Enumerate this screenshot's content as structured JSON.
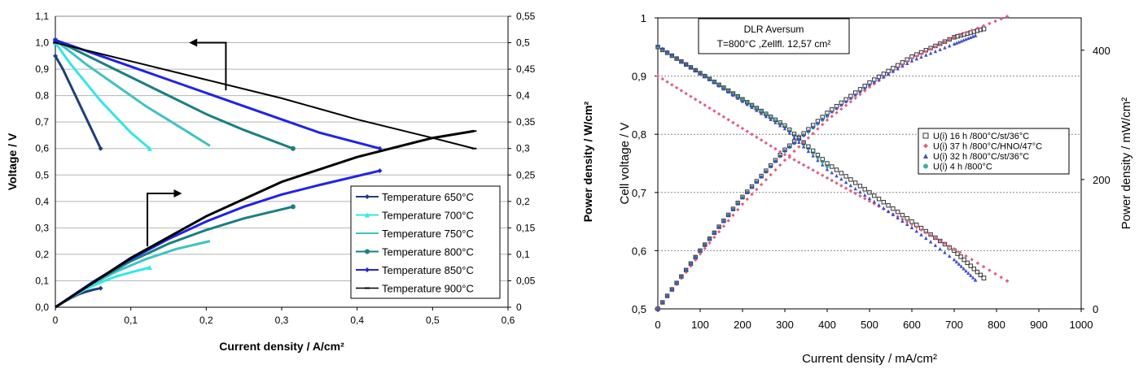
{
  "chart_data": [
    {
      "type": "line",
      "xlabel": "Current density / A/cm²",
      "ylabel": "Voltage / V",
      "y2label": "Power density / W/cm²",
      "xlim": [
        0,
        0.6
      ],
      "ylim": [
        0,
        1.1
      ],
      "y2lim": [
        0,
        0.55
      ],
      "x_ticks": [
        "0",
        "0,1",
        "0,2",
        "0,3",
        "0,4",
        "0,5",
        "0,6"
      ],
      "y_ticks": [
        "0,0",
        "0,1",
        "0,2",
        "0,3",
        "0,4",
        "0,5",
        "0,6",
        "0,7",
        "0,8",
        "0,9",
        "1,0",
        "1,1"
      ],
      "y2_ticks": [
        "0",
        "0,05",
        "0,1",
        "0,15",
        "0,2",
        "0,25",
        "0,3",
        "0,35",
        "0,4",
        "0,45",
        "0,5",
        "0,55"
      ],
      "grid": "horizontal",
      "legend_position": "center-right",
      "series": [
        {
          "name": "Temperature 650°C",
          "color": "#1f3f7a",
          "marker": "diamond",
          "voltage": [
            [
              0,
              0.95
            ],
            [
              0.01,
              0.9
            ],
            [
              0.02,
              0.84
            ],
            [
              0.03,
              0.78
            ],
            [
              0.04,
              0.72
            ],
            [
              0.05,
              0.66
            ],
            [
              0.06,
              0.6
            ]
          ],
          "power": [
            [
              0,
              0
            ],
            [
              0.01,
              0.009
            ],
            [
              0.02,
              0.017
            ],
            [
              0.03,
              0.024
            ],
            [
              0.04,
              0.029
            ],
            [
              0.05,
              0.033
            ],
            [
              0.06,
              0.036
            ]
          ]
        },
        {
          "name": "Temperature 700°C",
          "color": "#33e6e6",
          "marker": "triangle",
          "voltage": [
            [
              0,
              1.0
            ],
            [
              0.02,
              0.92
            ],
            [
              0.04,
              0.85
            ],
            [
              0.06,
              0.78
            ],
            [
              0.08,
              0.72
            ],
            [
              0.1,
              0.66
            ],
            [
              0.125,
              0.6
            ]
          ],
          "power": [
            [
              0,
              0
            ],
            [
              0.02,
              0.018
            ],
            [
              0.04,
              0.034
            ],
            [
              0.06,
              0.047
            ],
            [
              0.08,
              0.058
            ],
            [
              0.1,
              0.066
            ],
            [
              0.125,
              0.075
            ]
          ]
        },
        {
          "name": "Temperature 750°C",
          "color": "#3fc2c2",
          "marker": "none",
          "voltage": [
            [
              0,
              1.01
            ],
            [
              0.04,
              0.92
            ],
            [
              0.08,
              0.84
            ],
            [
              0.12,
              0.76
            ],
            [
              0.16,
              0.69
            ],
            [
              0.205,
              0.61
            ]
          ],
          "power": [
            [
              0,
              0
            ],
            [
              0.04,
              0.037
            ],
            [
              0.08,
              0.067
            ],
            [
              0.12,
              0.091
            ],
            [
              0.16,
              0.11
            ],
            [
              0.205,
              0.125
            ]
          ]
        },
        {
          "name": "Temperature 800°C",
          "color": "#1a7f7f",
          "marker": "circle",
          "voltage": [
            [
              0,
              1.01
            ],
            [
              0.05,
              0.94
            ],
            [
              0.1,
              0.87
            ],
            [
              0.15,
              0.8
            ],
            [
              0.2,
              0.73
            ],
            [
              0.25,
              0.67
            ],
            [
              0.315,
              0.6
            ]
          ],
          "power": [
            [
              0,
              0
            ],
            [
              0.05,
              0.047
            ],
            [
              0.1,
              0.087
            ],
            [
              0.15,
              0.12
            ],
            [
              0.2,
              0.146
            ],
            [
              0.25,
              0.168
            ],
            [
              0.315,
              0.19
            ]
          ]
        },
        {
          "name": "Temperature 850°C",
          "color": "#2222e6",
          "marker": "diamond",
          "voltage": [
            [
              0,
              1.01
            ],
            [
              0.05,
              0.96
            ],
            [
              0.1,
              0.91
            ],
            [
              0.15,
              0.86
            ],
            [
              0.2,
              0.81
            ],
            [
              0.25,
              0.76
            ],
            [
              0.3,
              0.71
            ],
            [
              0.35,
              0.66
            ],
            [
              0.43,
              0.6
            ]
          ],
          "power": [
            [
              0,
              0
            ],
            [
              0.05,
              0.048
            ],
            [
              0.1,
              0.091
            ],
            [
              0.15,
              0.129
            ],
            [
              0.2,
              0.162
            ],
            [
              0.25,
              0.19
            ],
            [
              0.3,
              0.213
            ],
            [
              0.35,
              0.231
            ],
            [
              0.43,
              0.258
            ]
          ]
        },
        {
          "name": "Temperature 900°C",
          "color": "#000000",
          "marker": "dash",
          "voltage": [
            [
              0,
              1.0
            ],
            [
              0.1,
              0.93
            ],
            [
              0.2,
              0.86
            ],
            [
              0.3,
              0.79
            ],
            [
              0.4,
              0.71
            ],
            [
              0.5,
              0.64
            ],
            [
              0.555,
              0.6
            ]
          ],
          "power": [
            [
              0,
              0
            ],
            [
              0.1,
              0.093
            ],
            [
              0.2,
              0.172
            ],
            [
              0.3,
              0.237
            ],
            [
              0.4,
              0.284
            ],
            [
              0.5,
              0.32
            ],
            [
              0.555,
              0.333
            ]
          ]
        }
      ],
      "annotations": [
        "arrow pointing left toward voltage axis",
        "arrow pointing right toward power axis"
      ]
    },
    {
      "type": "scatter",
      "xlabel": "Current density / mA/cm²",
      "ylabel": "Cell voltage / V",
      "y2label": "Power density / mW/cm²",
      "xlim": [
        0,
        1000
      ],
      "ylim": [
        0.5,
        1
      ],
      "y2lim": [
        0,
        450
      ],
      "x_ticks": [
        "0",
        "100",
        "200",
        "300",
        "400",
        "500",
        "600",
        "700",
        "800",
        "900",
        "1000"
      ],
      "y_ticks": [
        "0,5",
        "0,6",
        "0,7",
        "0,8",
        "0,9",
        "1"
      ],
      "y2_ticks": [
        "0",
        "200",
        "400"
      ],
      "grid": "horizontal dotted",
      "legend_position": "right",
      "title_box": {
        "line1": "DLR Aversum",
        "line2": "T=800°C ,Zellfl. 12,57 cm²"
      },
      "series": [
        {
          "name": "U(i) 16 h /800°C/st/36°C",
          "color": "#333333",
          "marker": "square",
          "voltage": [
            [
              0,
              0.95
            ],
            [
              100,
              0.905
            ],
            [
              200,
              0.86
            ],
            [
              300,
              0.815
            ],
            [
              400,
              0.75
            ],
            [
              500,
              0.7
            ],
            [
              600,
              0.65
            ],
            [
              700,
              0.6
            ],
            [
              770,
              0.553
            ]
          ],
          "power": [
            [
              0,
              0
            ],
            [
              100,
              90
            ],
            [
              200,
              173
            ],
            [
              300,
              246
            ],
            [
              400,
              303
            ],
            [
              500,
              350
            ],
            [
              600,
              390
            ],
            [
              700,
              420
            ],
            [
              770,
              433
            ]
          ]
        },
        {
          "name": "U(i) 37 h /800°C/HNO/47°C",
          "color": "#e0607e",
          "marker": "diamond",
          "voltage": [
            [
              0,
              0.9
            ],
            [
              100,
              0.855
            ],
            [
              200,
              0.81
            ],
            [
              300,
              0.765
            ],
            [
              400,
              0.725
            ],
            [
              500,
              0.685
            ],
            [
              600,
              0.645
            ],
            [
              700,
              0.603
            ],
            [
              825,
              0.548
            ]
          ],
          "power": [
            [
              0,
              0
            ],
            [
              100,
              85
            ],
            [
              200,
              162
            ],
            [
              300,
              230
            ],
            [
              400,
              292
            ],
            [
              500,
              343
            ],
            [
              600,
              387
            ],
            [
              700,
              420
            ],
            [
              825,
              452
            ]
          ]
        },
        {
          "name": "U(i) 32 h /800°C/st/36°C",
          "color": "#3f4fc8",
          "marker": "triangle",
          "voltage": [
            [
              0,
              0.953
            ],
            [
              100,
              0.905
            ],
            [
              200,
              0.857
            ],
            [
              300,
              0.81
            ],
            [
              400,
              0.74
            ],
            [
              500,
              0.69
            ],
            [
              600,
              0.64
            ],
            [
              700,
              0.585
            ],
            [
              750,
              0.55
            ]
          ],
          "power": [
            [
              0,
              0
            ],
            [
              100,
              90
            ],
            [
              200,
              172
            ],
            [
              300,
              245
            ],
            [
              400,
              300
            ],
            [
              500,
              347
            ],
            [
              600,
              384
            ],
            [
              700,
              410
            ],
            [
              750,
              423
            ]
          ]
        },
        {
          "name": "U(i) 4 h /800°C",
          "color": "#40b0a0",
          "marker": "circle",
          "voltage": [
            [
              0,
              0.95
            ],
            [
              100,
              0.905
            ],
            [
              200,
              0.86
            ],
            [
              300,
              0.813
            ],
            [
              400,
              0.745
            ]
          ],
          "power": [
            [
              0,
              0
            ],
            [
              100,
              90
            ],
            [
              200,
              172
            ],
            [
              300,
              244
            ],
            [
              400,
              298
            ]
          ]
        }
      ]
    }
  ]
}
